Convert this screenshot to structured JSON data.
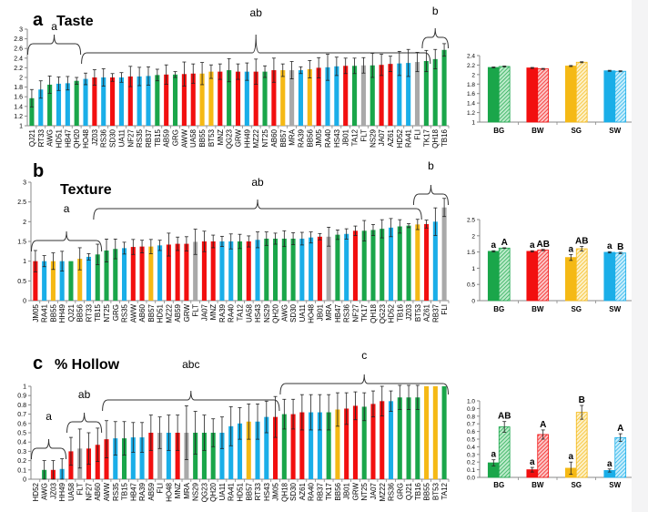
{
  "colors": {
    "green": "#1aa64a",
    "blue": "#1aaee8",
    "red": "#f20f0f",
    "yellow": "#f5b915",
    "gray": "#a9a9a9",
    "green_light": "#7fd69c",
    "blue_light": "#8fdcf7",
    "red_light": "#f98585",
    "yellow_light": "#fbe08a",
    "error_bar": "#222222",
    "axis": "#888888",
    "bracket": "#333333"
  },
  "chart_data": [
    {
      "id": "taste-cultivars",
      "type": "bar",
      "panel_letter": "a",
      "title": "Taste",
      "xlabel": "",
      "ylabel": "",
      "ylim": [
        1,
        3
      ],
      "yticks": [
        "1",
        "1.2",
        "1.4",
        "1.6",
        "1.8",
        "2",
        "2.2",
        "2.4",
        "2.6",
        "2.8",
        "3"
      ],
      "ytick_values": [
        1,
        1.2,
        1.4,
        1.6,
        1.8,
        2,
        2.2,
        2.4,
        2.6,
        2.8,
        3
      ],
      "grid": false,
      "categories": [
        "QJ21",
        "RT33",
        "AWG",
        "HD51",
        "HB47",
        "QH20",
        "HO48",
        "JZ03",
        "RS36",
        "SD30",
        "UA11",
        "NF27",
        "RS35",
        "RB37",
        "TB15",
        "AB59",
        "GRG",
        "AWW",
        "UA58",
        "BB55",
        "BT53",
        "MNZ",
        "QG23",
        "GRW",
        "HH49",
        "MZ22",
        "NT25",
        "AB60",
        "BB57",
        "MRA",
        "RA39",
        "BB56",
        "JM05",
        "RA40",
        "HS43",
        "JB01",
        "TA12",
        "FLT",
        "NS29",
        "JA07",
        "AZ61",
        "HD52",
        "RA41",
        "FLI",
        "TK17",
        "QH18",
        "TB16"
      ],
      "values": [
        1.57,
        1.75,
        1.85,
        1.87,
        1.88,
        1.93,
        1.97,
        2.0,
        2.0,
        2.0,
        2.0,
        2.02,
        2.02,
        2.03,
        2.05,
        2.06,
        2.06,
        2.07,
        2.08,
        2.08,
        2.12,
        2.12,
        2.15,
        2.12,
        2.12,
        2.12,
        2.12,
        2.15,
        2.15,
        2.15,
        2.15,
        2.17,
        2.2,
        2.21,
        2.23,
        2.24,
        2.24,
        2.25,
        2.25,
        2.26,
        2.28,
        2.29,
        2.3,
        2.32,
        2.34,
        2.38,
        2.57
      ],
      "errors": [
        0.18,
        0.18,
        0.18,
        0.14,
        0.14,
        0.07,
        0.12,
        0.16,
        0.18,
        0.08,
        0.1,
        0.21,
        0.19,
        0.19,
        0.12,
        0.2,
        0.06,
        0.25,
        0.2,
        0.23,
        0.14,
        0.16,
        0.24,
        0.16,
        0.18,
        0.26,
        0.12,
        0.25,
        0.13,
        0.18,
        0.07,
        0.18,
        0.21,
        0.27,
        0.19,
        0.16,
        0.16,
        0.16,
        0.25,
        0.22,
        0.16,
        0.25,
        0.28,
        0.2,
        0.22,
        0.2,
        0.13
      ],
      "bar_colors": [
        "green",
        "blue",
        "green",
        "blue",
        "blue",
        "green",
        "blue",
        "red",
        "blue",
        "red",
        "blue",
        "red",
        "blue",
        "blue",
        "green",
        "red",
        "green",
        "red",
        "red",
        "yellow",
        "yellow",
        "red",
        "green",
        "red",
        "blue",
        "red",
        "green",
        "red",
        "yellow",
        "gray",
        "blue",
        "yellow",
        "red",
        "blue",
        "blue",
        "red",
        "green",
        "gray",
        "green",
        "red",
        "red",
        "blue",
        "blue",
        "gray",
        "green",
        "green",
        "green"
      ],
      "groups": [
        {
          "label": "a",
          "from": "QJ21",
          "to": "QH20"
        },
        {
          "label": "ab",
          "from": "HO48",
          "to": "TK17"
        },
        {
          "label": "b",
          "from": "TK17",
          "to": "TB16"
        }
      ]
    },
    {
      "id": "taste-groups",
      "type": "bar",
      "title": "",
      "ylim": [
        1,
        2.4
      ],
      "yticks": [
        "1",
        "1.2",
        "1.4",
        "1.6",
        "1.8",
        "2",
        "2.2",
        "2.4"
      ],
      "ytick_values": [
        1,
        1.2,
        1.4,
        1.6,
        1.8,
        2,
        2.2,
        2.4
      ],
      "categories": [
        "BG",
        "BW",
        "SG",
        "SW"
      ],
      "series": [
        {
          "name": "solid",
          "pattern": "solid",
          "values": [
            2.15,
            2.14,
            2.18,
            2.08
          ],
          "errors": [
            0.01,
            0.01,
            0.01,
            0.01
          ],
          "letters": [
            "",
            "",
            "",
            ""
          ]
        },
        {
          "name": "hatched",
          "pattern": "hatched",
          "values": [
            2.17,
            2.12,
            2.26,
            2.07
          ],
          "errors": [
            0.01,
            0.01,
            0.01,
            0.01
          ],
          "letters": [
            "",
            "",
            "",
            ""
          ]
        }
      ],
      "bar_colors": [
        "green",
        "red",
        "yellow",
        "blue"
      ]
    },
    {
      "id": "texture-cultivars",
      "type": "bar",
      "panel_letter": "b",
      "title": "Texture",
      "ylim": [
        0,
        3
      ],
      "yticks": [
        "0",
        "0.5",
        "1",
        "1.5",
        "2",
        "2.5",
        "3"
      ],
      "ytick_values": [
        0,
        0.5,
        1,
        1.5,
        2,
        2.5,
        3
      ],
      "grid": false,
      "categories": [
        "JM05",
        "RA41",
        "BB55",
        "HH49",
        "QJ21",
        "BB56",
        "RT33",
        "TB15",
        "NT25",
        "GRG",
        "RS35",
        "AWW",
        "AB60",
        "BB57",
        "HD51",
        "MZ22",
        "AB59",
        "GRW",
        "FLT",
        "JA07",
        "MNZ",
        "RA39",
        "RA40",
        "TA12",
        "UA58",
        "HS43",
        "NS29",
        "QH20",
        "AWG",
        "SD30",
        "UA11",
        "HO48",
        "JB01",
        "MRA",
        "HB47",
        "RS36",
        "NF27",
        "TK17",
        "QH18",
        "QG23",
        "HD52",
        "TB16",
        "JZ03",
        "BT53",
        "AZ61",
        "RB37",
        "FLI"
      ],
      "values": [
        1.0,
        1.0,
        1.0,
        1.0,
        1.0,
        1.06,
        1.11,
        1.17,
        1.27,
        1.31,
        1.33,
        1.36,
        1.37,
        1.37,
        1.4,
        1.42,
        1.44,
        1.44,
        1.49,
        1.5,
        1.5,
        1.5,
        1.5,
        1.5,
        1.5,
        1.54,
        1.57,
        1.57,
        1.57,
        1.57,
        1.57,
        1.6,
        1.62,
        1.62,
        1.67,
        1.69,
        1.77,
        1.77,
        1.79,
        1.82,
        1.85,
        1.88,
        1.9,
        1.93,
        1.94,
        2.0,
        2.36
      ],
      "errors": [
        0.27,
        0.14,
        0.21,
        0.25,
        0.0,
        0.28,
        0.08,
        0.26,
        0.29,
        0.25,
        0.15,
        0.19,
        0.16,
        0.18,
        0.13,
        0.29,
        0.17,
        0.18,
        0.32,
        0.26,
        0.16,
        0.13,
        0.19,
        0.18,
        0.14,
        0.2,
        0.17,
        0.14,
        0.2,
        0.15,
        0.16,
        0.14,
        0.08,
        0.24,
        0.12,
        0.13,
        0.12,
        0.26,
        0.14,
        0.23,
        0.23,
        0.17,
        0.05,
        0.13,
        0.1,
        0.35,
        0.23
      ],
      "bar_colors": [
        "red",
        "blue",
        "yellow",
        "blue",
        "green",
        "yellow",
        "blue",
        "green",
        "green",
        "green",
        "blue",
        "red",
        "red",
        "yellow",
        "blue",
        "red",
        "red",
        "red",
        "gray",
        "red",
        "red",
        "blue",
        "blue",
        "green",
        "red",
        "blue",
        "green",
        "green",
        "green",
        "green",
        "blue",
        "blue",
        "red",
        "gray",
        "green",
        "blue",
        "red",
        "green",
        "green",
        "green",
        "blue",
        "green",
        "green",
        "yellow",
        "red",
        "blue",
        "gray"
      ],
      "groups": [
        {
          "label": "a",
          "from": "JM05",
          "to": "TB15"
        },
        {
          "label": "ab",
          "from": "TB15",
          "to": "BT53"
        },
        {
          "label": "b",
          "from": "BT53",
          "to": "FLI"
        }
      ]
    },
    {
      "id": "texture-groups",
      "type": "bar",
      "title": "",
      "ylim": [
        0,
        2.5
      ],
      "yticks": [
        "0",
        "0.5",
        "1",
        "1.5",
        "2",
        "2.5"
      ],
      "ytick_values": [
        0,
        0.5,
        1,
        1.5,
        2,
        2.5
      ],
      "categories": [
        "BG",
        "BW",
        "SG",
        "SW"
      ],
      "series": [
        {
          "name": "solid",
          "pattern": "solid",
          "values": [
            1.52,
            1.52,
            1.33,
            1.49
          ],
          "errors": [
            0.02,
            0.02,
            0.09,
            0.02
          ],
          "letters": [
            "a",
            "a",
            "a",
            "a"
          ]
        },
        {
          "name": "hatched",
          "pattern": "hatched",
          "values": [
            1.62,
            1.56,
            1.6,
            1.47
          ],
          "errors": [
            0.01,
            0.02,
            0.07,
            0.02
          ],
          "letters": [
            "A",
            "AB",
            "AB",
            "B"
          ]
        }
      ],
      "bar_colors": [
        "green",
        "red",
        "yellow",
        "blue"
      ]
    },
    {
      "id": "hollow-cultivars",
      "type": "bar",
      "panel_letter": "c",
      "title": "% Hollow",
      "ylim": [
        0,
        1
      ],
      "yticks": [
        "0",
        "0.1",
        "0.2",
        "0.3",
        "0.4",
        "0.5",
        "0.6",
        "0.7",
        "0.8",
        "0.9",
        "1"
      ],
      "ytick_values": [
        0,
        0.1,
        0.2,
        0.3,
        0.4,
        0.5,
        0.6,
        0.7,
        0.8,
        0.9,
        1
      ],
      "grid": false,
      "categories": [
        "HD52",
        "AWG",
        "JZ03",
        "HH49",
        "UA58",
        "FLT",
        "NF27",
        "AB60",
        "AWW",
        "RS35",
        "TB15",
        "HB47",
        "RA39",
        "AB59",
        "FLI",
        "HO48",
        "MNZ",
        "MRA",
        "NS29",
        "QG23",
        "QH20",
        "UA11",
        "RA41",
        "HD51",
        "BB57",
        "RT33",
        "HS43",
        "JM05",
        "QH18",
        "SD30",
        "AZ61",
        "RA40",
        "RB37",
        "TK17",
        "BB56",
        "JB01",
        "GRW",
        "NT25",
        "JA07",
        "MZ22",
        "RS36",
        "GRG",
        "QJ21",
        "TB16",
        "BB55",
        "BT53",
        "TA12"
      ],
      "values": [
        0.0,
        0.1,
        0.1,
        0.11,
        0.3,
        0.33,
        0.33,
        0.37,
        0.43,
        0.44,
        0.44,
        0.45,
        0.45,
        0.5,
        0.5,
        0.5,
        0.5,
        0.5,
        0.5,
        0.5,
        0.5,
        0.5,
        0.57,
        0.6,
        0.62,
        0.62,
        0.67,
        0.67,
        0.7,
        0.7,
        0.72,
        0.72,
        0.72,
        0.72,
        0.75,
        0.76,
        0.79,
        0.78,
        0.81,
        0.84,
        0.84,
        0.88,
        0.88,
        0.88,
        1.0,
        1.0,
        1.0
      ],
      "errors": [
        0.0,
        0.1,
        0.1,
        0.11,
        0.15,
        0.21,
        0.17,
        0.18,
        0.2,
        0.18,
        0.18,
        0.16,
        0.16,
        0.19,
        0.17,
        0.19,
        0.19,
        0.29,
        0.23,
        0.19,
        0.15,
        0.17,
        0.21,
        0.17,
        0.19,
        0.19,
        0.17,
        0.22,
        0.16,
        0.16,
        0.19,
        0.19,
        0.19,
        0.19,
        0.18,
        0.17,
        0.15,
        0.15,
        0.14,
        0.16,
        0.11,
        0.13,
        0.13,
        0.13,
        0.0,
        0.0,
        0.0
      ],
      "bar_colors": [
        "blue",
        "green",
        "red",
        "blue",
        "red",
        "gray",
        "red",
        "red",
        "red",
        "blue",
        "green",
        "blue",
        "blue",
        "red",
        "gray",
        "blue",
        "red",
        "gray",
        "green",
        "green",
        "green",
        "blue",
        "blue",
        "blue",
        "yellow",
        "blue",
        "blue",
        "red",
        "green",
        "red",
        "red",
        "blue",
        "blue",
        "green",
        "yellow",
        "red",
        "red",
        "green",
        "red",
        "red",
        "blue",
        "green",
        "green",
        "green",
        "yellow",
        "yellow",
        "green"
      ],
      "groups": [
        {
          "label": "a",
          "from": "HD52",
          "to": "HH49"
        },
        {
          "label": "ab",
          "from": "UA58",
          "to": "AB60"
        },
        {
          "label": "abc",
          "from": "AWW",
          "to": "JM05"
        },
        {
          "label": "c",
          "from": "QH18",
          "to": "TA12"
        }
      ]
    },
    {
      "id": "hollow-groups",
      "type": "bar",
      "title": "",
      "ylim": [
        0,
        1
      ],
      "yticks": [
        "0.0",
        "0.1",
        "0.2",
        "0.3",
        "0.4",
        "0.5",
        "0.6",
        "0.7",
        "0.8",
        "0.9",
        "1.0"
      ],
      "ytick_values": [
        0,
        0.1,
        0.2,
        0.3,
        0.4,
        0.5,
        0.6,
        0.7,
        0.8,
        0.9,
        1.0
      ],
      "categories": [
        "BG",
        "BW",
        "SG",
        "SW"
      ],
      "series": [
        {
          "name": "solid",
          "pattern": "solid",
          "values": [
            0.19,
            0.1,
            0.12,
            0.09
          ],
          "errors": [
            0.04,
            0.03,
            0.08,
            0.02
          ],
          "letters": [
            "a",
            "a",
            "a",
            "a"
          ]
        },
        {
          "name": "hatched",
          "pattern": "hatched",
          "values": [
            0.66,
            0.56,
            0.85,
            0.52
          ],
          "errors": [
            0.07,
            0.06,
            0.09,
            0.05
          ],
          "letters": [
            "AB",
            "A",
            "B",
            "A"
          ]
        }
      ],
      "bar_colors": [
        "green",
        "red",
        "yellow",
        "blue"
      ]
    }
  ]
}
